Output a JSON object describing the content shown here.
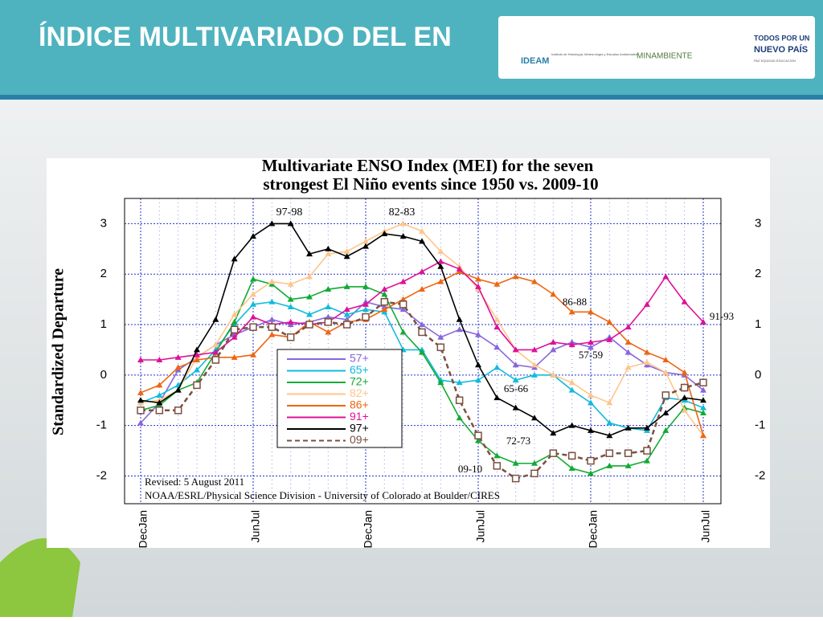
{
  "slide": {
    "title": "ÍNDICE MULTIVARIADO DEL EN",
    "logos": {
      "ideam": "IDEAM",
      "ideam_sub": "Instituto de Hidrología, Meteorología y Estudios Ambientales",
      "minambiente": "MINAMBIENTE",
      "pais1": "TODOS POR UN",
      "pais2": "NUEVO PAÍS",
      "pais3": "PAZ  EQUIDAD  EDUCACIÓN"
    }
  },
  "chart_data": {
    "type": "line",
    "title": [
      "Multivariate ENSO Index (MEI) for the seven",
      "strongest El Niño events since 1950 vs. 2009-10"
    ],
    "y_label": "Standardized Departure",
    "categories": [
      "DecJan",
      null,
      null,
      null,
      null,
      null,
      "JunJul",
      null,
      null,
      null,
      null,
      null,
      "DecJan",
      null,
      null,
      null,
      null,
      null,
      "JunJul",
      null,
      null,
      null,
      null,
      null,
      "DecJan",
      null,
      null,
      null,
      null,
      null,
      "JunJul"
    ],
    "ylim": [
      -2.55,
      3.5
    ],
    "yticks": [
      -2,
      -1,
      0,
      1,
      2,
      3
    ],
    "y2lim": [
      -2.55,
      3.5
    ],
    "y2ticks": [
      -2,
      -1,
      0,
      1,
      2,
      3
    ],
    "grid": true,
    "series": [
      {
        "name": "57+",
        "color": "#8866dd",
        "values": [
          -0.95,
          -0.55,
          0.1,
          0.35,
          0.6,
          0.8,
          0.95,
          1.1,
          1.0,
          1.05,
          1.15,
          1.1,
          1.45,
          1.35,
          1.3,
          1.0,
          0.75,
          0.9,
          0.8,
          0.55,
          0.2,
          0.15,
          0.5,
          0.65,
          0.55,
          0.75,
          0.45,
          0.2,
          0.05,
          0.0,
          -0.3
        ]
      },
      {
        "name": "65+",
        "color": "#11bbdd",
        "values": [
          -0.55,
          -0.4,
          -0.2,
          0.1,
          0.5,
          1.0,
          1.4,
          1.45,
          1.35,
          1.2,
          1.35,
          1.2,
          1.3,
          1.25,
          0.5,
          0.5,
          -0.1,
          -0.15,
          -0.1,
          0.15,
          -0.1,
          0.0,
          0.0,
          -0.3,
          -0.55,
          -0.95,
          -1.05,
          -1.1,
          -0.45,
          -0.5,
          -0.65
        ]
      },
      {
        "name": "72+",
        "color": "#11aa33",
        "values": [
          -0.7,
          -0.6,
          -0.3,
          -0.15,
          0.45,
          1.05,
          1.9,
          1.8,
          1.5,
          1.55,
          1.7,
          1.75,
          1.75,
          1.6,
          0.85,
          0.45,
          -0.15,
          -0.85,
          -1.3,
          -1.6,
          -1.75,
          -1.75,
          -1.55,
          -1.85,
          -1.95,
          -1.8,
          -1.8,
          -1.7,
          -1.1,
          -0.65,
          -0.75
        ]
      },
      {
        "name": "82+",
        "color": "#ffc58a",
        "values": [
          -0.55,
          -0.5,
          -0.3,
          0.35,
          0.6,
          1.2,
          1.6,
          1.85,
          1.8,
          1.95,
          2.4,
          2.45,
          2.65,
          2.85,
          3.0,
          2.85,
          2.45,
          2.15,
          1.7,
          1.1,
          0.5,
          0.2,
          0.0,
          -0.15,
          -0.4,
          -0.55,
          0.15,
          0.25,
          0.05,
          -0.7,
          -1.2
        ]
      },
      {
        "name": "86+",
        "color": "#ee6611",
        "values": [
          -0.35,
          -0.2,
          0.15,
          0.3,
          0.35,
          0.35,
          0.4,
          0.8,
          0.75,
          1.05,
          0.85,
          1.05,
          1.1,
          1.3,
          1.5,
          1.7,
          1.85,
          2.05,
          1.9,
          1.8,
          1.95,
          1.85,
          1.6,
          1.25,
          1.25,
          1.05,
          0.65,
          0.45,
          0.3,
          0.05,
          -1.2
        ]
      },
      {
        "name": "91+",
        "color": "#dd1199",
        "values": [
          0.3,
          0.3,
          0.35,
          0.4,
          0.45,
          0.75,
          1.15,
          1.0,
          1.05,
          1.0,
          1.05,
          1.3,
          1.4,
          1.7,
          1.85,
          2.05,
          2.25,
          2.1,
          1.75,
          0.95,
          0.5,
          0.5,
          0.65,
          0.6,
          0.65,
          0.7,
          0.95,
          1.4,
          1.95,
          1.45,
          1.05
        ]
      },
      {
        "name": "97+",
        "color": "#000000",
        "values": [
          -0.5,
          -0.55,
          -0.3,
          0.5,
          1.1,
          2.3,
          2.75,
          3.0,
          3.0,
          2.4,
          2.5,
          2.35,
          2.55,
          2.8,
          2.75,
          2.65,
          2.15,
          1.1,
          0.2,
          -0.45,
          -0.65,
          -0.85,
          -1.15,
          -1.0,
          -1.1,
          -1.2,
          -1.05,
          -1.05,
          -0.75,
          -0.45,
          -0.5
        ]
      },
      {
        "name": "09+",
        "color": "#7a5040",
        "values": [
          -0.7,
          -0.7,
          -0.7,
          -0.2,
          0.3,
          0.9,
          0.95,
          0.95,
          0.75,
          1.0,
          1.05,
          1.0,
          1.15,
          1.45,
          1.4,
          0.85,
          0.55,
          -0.5,
          -1.2,
          -1.8,
          -2.05,
          -1.95,
          -1.55,
          -1.6,
          -1.7,
          -1.55,
          -1.55,
          -1.5,
          -0.4,
          -0.25,
          -0.15
        ]
      }
    ],
    "annotations": [
      "97-98",
      "82-83",
      "86-88",
      "57-59",
      "65-66",
      "72-73",
      "09-10",
      "91-93",
      "Revised: 5 August 2011",
      "NOAA/ESRL/Physical Science Division - University of Colorado at Boulder/CIRES"
    ]
  }
}
